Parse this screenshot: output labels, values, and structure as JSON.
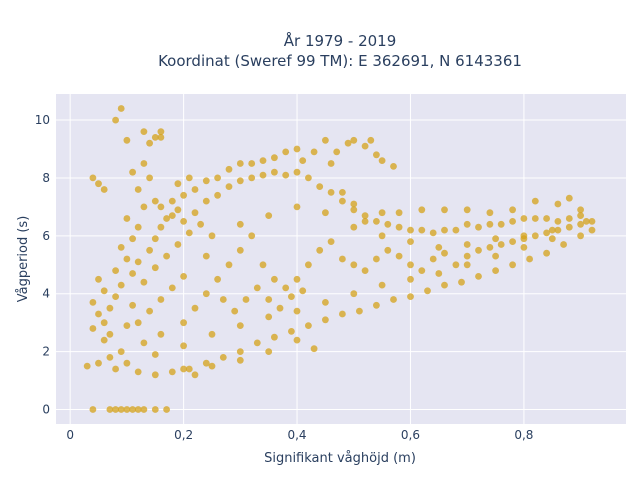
{
  "chart_data": {
    "type": "scatter",
    "title_lines": [
      "År 1979 - 2019",
      "Koordinat (Sweref 99 TM): E 362691, N 6143361"
    ],
    "xlabel": "Signifikant våghöjd (m)",
    "ylabel": "Vågperiod (s)",
    "xlim": [
      -0.025,
      0.98
    ],
    "ylim": [
      -0.5,
      10.9
    ],
    "xticks": [
      0,
      0.2,
      0.4,
      0.6,
      0.8
    ],
    "xtick_labels": [
      "0",
      "0,2",
      "0,4",
      "0,6",
      "0,8"
    ],
    "yticks": [
      0,
      2,
      4,
      6,
      8,
      10
    ],
    "ytick_labels": [
      "0",
      "2",
      "4",
      "6",
      "8",
      "10"
    ],
    "grid": true,
    "legend": false,
    "colors": {
      "marker": "#d4a21a",
      "plot_bg": "#e5e5f2",
      "grid": "#ffffff",
      "text": "#2a3f5f"
    },
    "series": [
      {
        "points": [
          [
            0.04,
            0.0
          ],
          [
            0.07,
            0.0
          ],
          [
            0.08,
            0.0
          ],
          [
            0.09,
            0.0
          ],
          [
            0.1,
            0.0
          ],
          [
            0.11,
            0.0
          ],
          [
            0.12,
            0.0
          ],
          [
            0.13,
            0.0
          ],
          [
            0.15,
            0.0
          ],
          [
            0.17,
            0.0
          ],
          [
            0.03,
            1.5
          ],
          [
            0.05,
            1.6
          ],
          [
            0.07,
            1.8
          ],
          [
            0.09,
            2.0
          ],
          [
            0.06,
            2.4
          ],
          [
            0.04,
            2.8
          ],
          [
            0.05,
            3.3
          ],
          [
            0.04,
            3.7
          ],
          [
            0.06,
            4.1
          ],
          [
            0.05,
            4.5
          ],
          [
            0.08,
            4.8
          ],
          [
            0.1,
            5.2
          ],
          [
            0.09,
            5.6
          ],
          [
            0.11,
            5.9
          ],
          [
            0.12,
            6.3
          ],
          [
            0.1,
            6.6
          ],
          [
            0.13,
            7.0
          ],
          [
            0.15,
            7.2
          ],
          [
            0.12,
            7.6
          ],
          [
            0.14,
            8.0
          ],
          [
            0.04,
            8.0
          ],
          [
            0.05,
            7.8
          ],
          [
            0.06,
            7.6
          ],
          [
            0.11,
            8.2
          ],
          [
            0.13,
            8.5
          ],
          [
            0.14,
            9.2
          ],
          [
            0.15,
            9.4
          ],
          [
            0.1,
            9.3
          ],
          [
            0.13,
            9.6
          ],
          [
            0.16,
            9.6
          ],
          [
            0.08,
            10.0
          ],
          [
            0.09,
            10.4
          ],
          [
            0.16,
            9.4
          ],
          [
            0.12,
            1.3
          ],
          [
            0.15,
            1.2
          ],
          [
            0.18,
            1.3
          ],
          [
            0.21,
            1.4
          ],
          [
            0.24,
            1.6
          ],
          [
            0.27,
            1.8
          ],
          [
            0.3,
            2.0
          ],
          [
            0.33,
            2.3
          ],
          [
            0.36,
            2.5
          ],
          [
            0.39,
            2.7
          ],
          [
            0.42,
            2.9
          ],
          [
            0.45,
            3.1
          ],
          [
            0.48,
            3.3
          ],
          [
            0.51,
            3.4
          ],
          [
            0.54,
            3.6
          ],
          [
            0.57,
            3.8
          ],
          [
            0.6,
            3.9
          ],
          [
            0.63,
            4.1
          ],
          [
            0.66,
            4.3
          ],
          [
            0.69,
            4.4
          ],
          [
            0.72,
            4.6
          ],
          [
            0.75,
            4.8
          ],
          [
            0.78,
            5.0
          ],
          [
            0.81,
            5.2
          ],
          [
            0.84,
            5.4
          ],
          [
            0.87,
            5.7
          ],
          [
            0.9,
            6.0
          ],
          [
            0.92,
            6.2
          ],
          [
            0.91,
            6.5
          ],
          [
            0.9,
            6.9
          ],
          [
            0.88,
            7.3
          ],
          [
            0.86,
            7.1
          ],
          [
            0.82,
            7.2
          ],
          [
            0.78,
            6.9
          ],
          [
            0.74,
            6.8
          ],
          [
            0.7,
            6.9
          ],
          [
            0.66,
            6.9
          ],
          [
            0.62,
            6.9
          ],
          [
            0.58,
            6.8
          ],
          [
            0.55,
            6.8
          ],
          [
            0.52,
            6.5
          ],
          [
            0.5,
            7.1
          ],
          [
            0.48,
            7.5
          ],
          [
            0.46,
            8.5
          ],
          [
            0.47,
            8.9
          ],
          [
            0.49,
            9.2
          ],
          [
            0.5,
            9.3
          ],
          [
            0.52,
            9.1
          ],
          [
            0.53,
            9.3
          ],
          [
            0.54,
            8.8
          ],
          [
            0.55,
            8.6
          ],
          [
            0.57,
            8.4
          ],
          [
            0.45,
            9.3
          ],
          [
            0.43,
            8.9
          ],
          [
            0.41,
            8.6
          ],
          [
            0.4,
            9.0
          ],
          [
            0.38,
            8.9
          ],
          [
            0.36,
            8.7
          ],
          [
            0.34,
            8.6
          ],
          [
            0.32,
            8.5
          ],
          [
            0.3,
            8.5
          ],
          [
            0.28,
            8.3
          ],
          [
            0.26,
            8.0
          ],
          [
            0.24,
            7.9
          ],
          [
            0.22,
            7.6
          ],
          [
            0.2,
            7.4
          ],
          [
            0.18,
            7.2
          ],
          [
            0.16,
            7.0
          ],
          [
            0.19,
            7.8
          ],
          [
            0.21,
            8.0
          ],
          [
            0.43,
            2.1
          ],
          [
            0.25,
            1.5
          ],
          [
            0.3,
            1.7
          ],
          [
            0.22,
            1.2
          ],
          [
            0.2,
            1.4
          ],
          [
            0.35,
            2.0
          ],
          [
            0.4,
            2.4
          ],
          [
            0.18,
            6.7
          ],
          [
            0.2,
            6.5
          ],
          [
            0.22,
            6.8
          ],
          [
            0.24,
            7.2
          ],
          [
            0.26,
            7.4
          ],
          [
            0.28,
            7.7
          ],
          [
            0.3,
            7.9
          ],
          [
            0.32,
            8.0
          ],
          [
            0.34,
            8.1
          ],
          [
            0.36,
            8.2
          ],
          [
            0.38,
            8.1
          ],
          [
            0.4,
            8.2
          ],
          [
            0.42,
            8.0
          ],
          [
            0.44,
            7.7
          ],
          [
            0.46,
            7.5
          ],
          [
            0.48,
            7.2
          ],
          [
            0.5,
            6.9
          ],
          [
            0.52,
            6.7
          ],
          [
            0.54,
            6.5
          ],
          [
            0.56,
            6.4
          ],
          [
            0.58,
            6.3
          ],
          [
            0.6,
            6.2
          ],
          [
            0.62,
            6.2
          ],
          [
            0.64,
            6.1
          ],
          [
            0.66,
            6.2
          ],
          [
            0.68,
            6.2
          ],
          [
            0.7,
            6.4
          ],
          [
            0.72,
            6.3
          ],
          [
            0.74,
            6.4
          ],
          [
            0.76,
            6.4
          ],
          [
            0.78,
            6.5
          ],
          [
            0.8,
            6.6
          ],
          [
            0.82,
            6.6
          ],
          [
            0.84,
            6.6
          ],
          [
            0.86,
            6.5
          ],
          [
            0.88,
            6.6
          ],
          [
            0.9,
            6.7
          ],
          [
            0.92,
            6.5
          ],
          [
            0.85,
            5.9
          ],
          [
            0.8,
            5.6
          ],
          [
            0.75,
            5.3
          ],
          [
            0.7,
            5.0
          ],
          [
            0.65,
            4.7
          ],
          [
            0.6,
            4.5
          ],
          [
            0.55,
            4.3
          ],
          [
            0.5,
            4.0
          ],
          [
            0.45,
            3.7
          ],
          [
            0.4,
            3.4
          ],
          [
            0.35,
            3.2
          ],
          [
            0.3,
            2.9
          ],
          [
            0.25,
            2.6
          ],
          [
            0.2,
            2.2
          ],
          [
            0.15,
            1.9
          ],
          [
            0.1,
            1.6
          ],
          [
            0.08,
            1.4
          ],
          [
            0.07,
            2.6
          ],
          [
            0.06,
            3.0
          ],
          [
            0.07,
            3.5
          ],
          [
            0.08,
            3.9
          ],
          [
            0.09,
            4.3
          ],
          [
            0.11,
            4.7
          ],
          [
            0.12,
            5.1
          ],
          [
            0.14,
            5.5
          ],
          [
            0.15,
            5.9
          ],
          [
            0.16,
            6.3
          ],
          [
            0.17,
            6.6
          ],
          [
            0.19,
            6.9
          ],
          [
            0.25,
            6.0
          ],
          [
            0.3,
            6.4
          ],
          [
            0.35,
            6.7
          ],
          [
            0.4,
            7.0
          ],
          [
            0.45,
            6.8
          ],
          [
            0.5,
            6.3
          ],
          [
            0.55,
            6.0
          ],
          [
            0.6,
            5.8
          ],
          [
            0.65,
            5.6
          ],
          [
            0.7,
            5.7
          ],
          [
            0.75,
            5.9
          ],
          [
            0.8,
            6.0
          ],
          [
            0.85,
            6.2
          ],
          [
            0.2,
            3.0
          ],
          [
            0.22,
            3.5
          ],
          [
            0.24,
            4.0
          ],
          [
            0.26,
            4.5
          ],
          [
            0.28,
            5.0
          ],
          [
            0.3,
            5.5
          ],
          [
            0.32,
            6.0
          ],
          [
            0.34,
            5.0
          ],
          [
            0.36,
            4.5
          ],
          [
            0.38,
            4.2
          ],
          [
            0.4,
            4.5
          ],
          [
            0.42,
            5.0
          ],
          [
            0.44,
            5.5
          ],
          [
            0.46,
            5.8
          ],
          [
            0.48,
            5.2
          ],
          [
            0.5,
            5.0
          ],
          [
            0.52,
            4.8
          ],
          [
            0.54,
            5.2
          ],
          [
            0.56,
            5.5
          ],
          [
            0.58,
            5.3
          ],
          [
            0.6,
            5.0
          ],
          [
            0.62,
            4.8
          ],
          [
            0.64,
            5.2
          ],
          [
            0.66,
            5.4
          ],
          [
            0.68,
            5.0
          ],
          [
            0.7,
            5.3
          ],
          [
            0.72,
            5.5
          ],
          [
            0.74,
            5.6
          ],
          [
            0.76,
            5.7
          ],
          [
            0.78,
            5.8
          ],
          [
            0.8,
            5.9
          ],
          [
            0.82,
            6.0
          ],
          [
            0.84,
            6.1
          ],
          [
            0.86,
            6.2
          ],
          [
            0.88,
            6.3
          ],
          [
            0.9,
            6.4
          ],
          [
            0.12,
            3.0
          ],
          [
            0.14,
            3.4
          ],
          [
            0.16,
            3.8
          ],
          [
            0.18,
            4.2
          ],
          [
            0.2,
            4.6
          ],
          [
            0.13,
            2.3
          ],
          [
            0.16,
            2.6
          ],
          [
            0.1,
            2.9
          ],
          [
            0.11,
            3.6
          ],
          [
            0.13,
            4.4
          ],
          [
            0.15,
            4.9
          ],
          [
            0.17,
            5.3
          ],
          [
            0.19,
            5.7
          ],
          [
            0.21,
            6.1
          ],
          [
            0.23,
            6.4
          ],
          [
            0.24,
            5.3
          ],
          [
            0.27,
            3.8
          ],
          [
            0.29,
            3.4
          ],
          [
            0.31,
            3.8
          ],
          [
            0.33,
            4.2
          ],
          [
            0.35,
            3.8
          ],
          [
            0.37,
            3.5
          ],
          [
            0.39,
            3.9
          ],
          [
            0.41,
            4.1
          ]
        ]
      }
    ]
  }
}
